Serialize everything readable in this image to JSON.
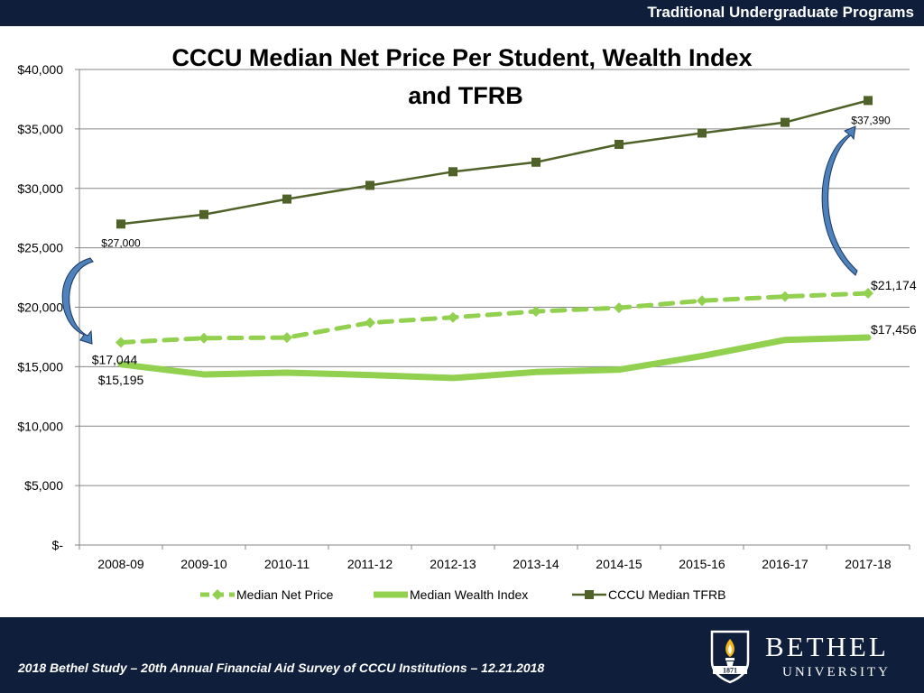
{
  "header": {
    "text": "Traditional Undergraduate Programs"
  },
  "footer": {
    "text": "2018 Bethel Study – 20th Annual Financial Aid Survey of CCCU Institutions – 12.21.2018"
  },
  "logo": {
    "name": "BETHEL",
    "subname": "UNIVERSITY",
    "year": "1871",
    "icon": "torch-shield-icon"
  },
  "colors": {
    "header_bg": "#0f1e3a",
    "net_price": "#92d050",
    "wealth_index": "#92d050",
    "tfrb": "#4f6228",
    "tfrb_marker": "#4f6228",
    "arrow_fill": "#4f81bd",
    "arrow_stroke": "#17375e",
    "grid": "#868686"
  },
  "chart_data": {
    "type": "line",
    "title": [
      "CCCU Median Net Price Per Student, Wealth Index",
      "and TFRB"
    ],
    "xlabel": "",
    "ylabel": "",
    "categories": [
      "2008-09",
      "2009-10",
      "2010-11",
      "2011-12",
      "2012-13",
      "2013-14",
      "2014-15",
      "2015-16",
      "2016-17",
      "2017-18"
    ],
    "ylim": [
      0,
      40000
    ],
    "yticks": [
      {
        "value": 0,
        "label": "$-"
      },
      {
        "value": 5000,
        "label": "$5,000"
      },
      {
        "value": 10000,
        "label": "$10,000"
      },
      {
        "value": 15000,
        "label": "$15,000"
      },
      {
        "value": 20000,
        "label": "$20,000"
      },
      {
        "value": 25000,
        "label": "$25,000"
      },
      {
        "value": 30000,
        "label": "$30,000"
      },
      {
        "value": 35000,
        "label": "$35,000"
      },
      {
        "value": 40000,
        "label": "$40,000"
      }
    ],
    "grid": true,
    "legend": "bottom",
    "series": [
      {
        "name": "Median Net Price",
        "style": "dashed",
        "marker": "diamond",
        "values": [
          17044,
          17400,
          17450,
          18700,
          19150,
          19650,
          19950,
          20550,
          20900,
          21174
        ],
        "labels": [
          {
            "index": 0,
            "text": "$17,044",
            "position": "below"
          },
          {
            "index": 9,
            "text": "$21,174",
            "position": "right"
          }
        ]
      },
      {
        "name": "Median Wealth Index",
        "style": "thick-solid",
        "marker": "none",
        "values": [
          15195,
          14350,
          14500,
          14300,
          14050,
          14550,
          14750,
          15900,
          17250,
          17456
        ],
        "labels": [
          {
            "index": 0,
            "text": "$15,195",
            "position": "below"
          },
          {
            "index": 9,
            "text": "$17,456",
            "position": "right"
          }
        ]
      },
      {
        "name": "CCCU Median TFRB",
        "style": "solid",
        "marker": "square",
        "values": [
          27000,
          27800,
          29100,
          30250,
          31400,
          32200,
          33700,
          34650,
          35550,
          37390
        ],
        "labels": [
          {
            "index": 0,
            "text": "$27,000",
            "position": "below"
          },
          {
            "index": 9,
            "text": "$37,390",
            "position": "below"
          }
        ]
      }
    ]
  }
}
